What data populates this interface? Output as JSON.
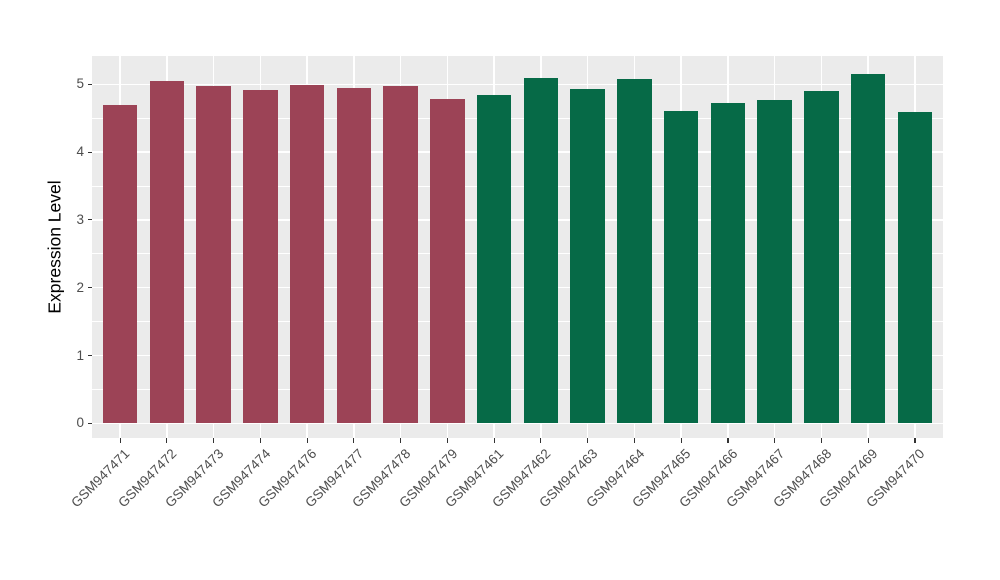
{
  "chart_data": {
    "type": "bar",
    "ylabel": "Expression Level",
    "categories": [
      "GSM947471",
      "GSM947472",
      "GSM947473",
      "GSM947474",
      "GSM947476",
      "GSM947477",
      "GSM947478",
      "GSM947479",
      "GSM947461",
      "GSM947462",
      "GSM947463",
      "GSM947464",
      "GSM947465",
      "GSM947466",
      "GSM947467",
      "GSM947468",
      "GSM947469",
      "GSM947470"
    ],
    "values": [
      4.7,
      5.05,
      4.97,
      4.91,
      4.99,
      4.95,
      4.97,
      4.78,
      4.84,
      5.09,
      4.93,
      5.08,
      4.61,
      4.73,
      4.77,
      4.9,
      5.15,
      4.59
    ],
    "bar_colors": [
      "#9C4356",
      "#9C4356",
      "#9C4356",
      "#9C4356",
      "#9C4356",
      "#9C4356",
      "#9C4356",
      "#9C4356",
      "#066A47",
      "#066A47",
      "#066A47",
      "#066A47",
      "#066A47",
      "#066A47",
      "#066A47",
      "#066A47",
      "#066A47",
      "#066A47"
    ],
    "group_colors": {
      "maroon_group": "#9C4356",
      "green_group": "#066A47"
    },
    "ylim": [
      0,
      5.42
    ],
    "yticks": [
      0,
      1,
      2,
      3,
      4,
      5
    ],
    "ytick_labels": [
      "0",
      "1",
      "2",
      "3",
      "4",
      "5"
    ],
    "minor_yticks": [
      0.5,
      1.5,
      2.5,
      3.5,
      4.5
    ],
    "x_tick_rotation_deg": 45,
    "legend_position": "none",
    "grid": {
      "panel_bg": "#EBEBEB",
      "major_color": "#FFFFFF",
      "minor_color": "#FFFFFF",
      "tick_color": "#333333",
      "tick_label_color": "#4D4D4D"
    }
  }
}
